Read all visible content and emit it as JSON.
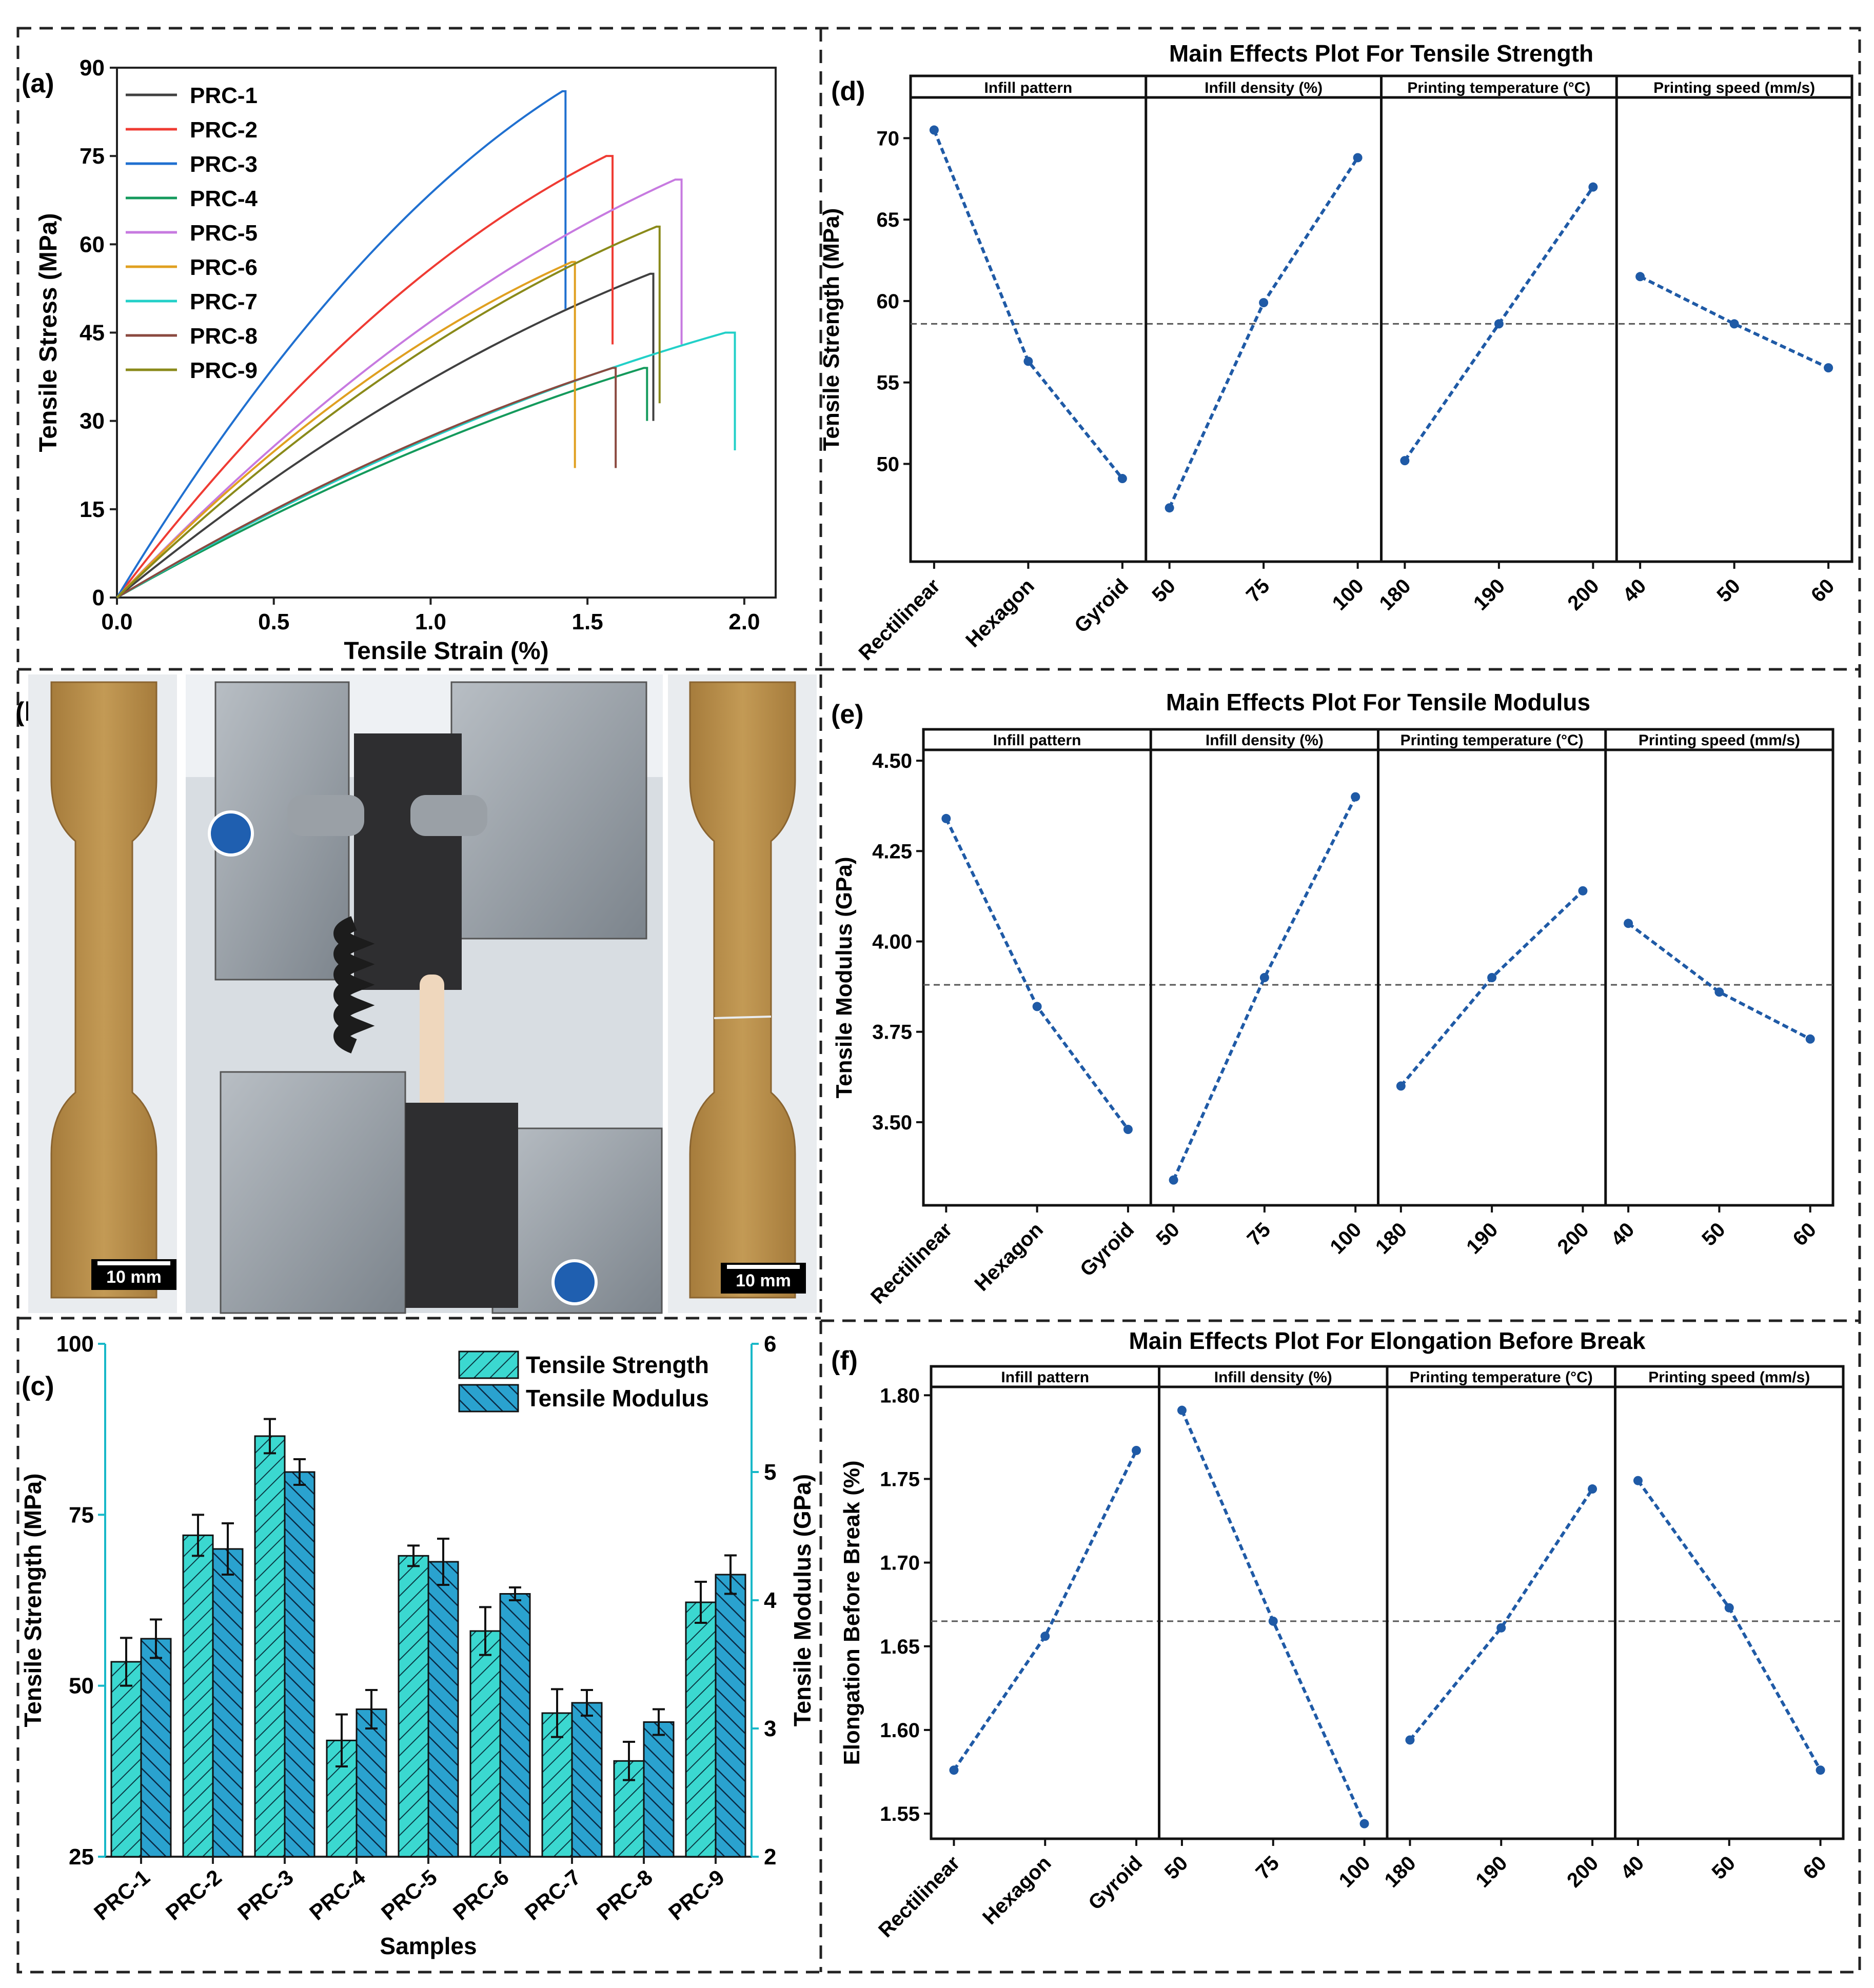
{
  "panel_labels": {
    "a": "(a)",
    "b": "(b)",
    "c": "(c)",
    "d": "(d)",
    "e": "(e)",
    "f": "(f)"
  },
  "photos": {
    "scale_label_left": "10 mm",
    "scale_label_right": "10 mm"
  },
  "colors": {
    "main_effect_line": "#1f5aa6",
    "bar_strength": "#3bd8d0",
    "bar_modulus": "#2aa2cf",
    "axis_cyan": "#19b8c8"
  },
  "chart_data": [
    {
      "id": "a",
      "type": "line",
      "title": "",
      "xlabel": "Tensile Strain (%)",
      "ylabel": "Tensile Stress (MPa)",
      "xlim": [
        0,
        2.1
      ],
      "ylim": [
        0,
        90
      ],
      "xticks": [
        "0.0",
        "0.5",
        "1.0",
        "1.5",
        "2.0"
      ],
      "yticks": [
        "0",
        "15",
        "30",
        "45",
        "60",
        "75",
        "90"
      ],
      "legend_position": "top-left",
      "series": [
        {
          "name": "PRC-1",
          "color": "#404040",
          "peak_strain": 1.7,
          "peak_stress": 55,
          "break_strain": 1.71,
          "end_stress": 30,
          "curvature": 0.35
        },
        {
          "name": "PRC-2",
          "color": "#ef3b33",
          "peak_strain": 1.56,
          "peak_stress": 75,
          "break_strain": 1.58,
          "end_stress": 43,
          "curvature": 0.45
        },
        {
          "name": "PRC-3",
          "color": "#2070d0",
          "peak_strain": 1.42,
          "peak_stress": 86,
          "break_strain": 1.43,
          "end_stress": 49,
          "curvature": 0.45
        },
        {
          "name": "PRC-4",
          "color": "#149a5c",
          "peak_strain": 1.68,
          "peak_stress": 39,
          "break_strain": 1.69,
          "end_stress": 30,
          "curvature": 0.3
        },
        {
          "name": "PRC-5",
          "color": "#c77ae0",
          "peak_strain": 1.78,
          "peak_stress": 71,
          "break_strain": 1.8,
          "end_stress": 43,
          "curvature": 0.4
        },
        {
          "name": "PRC-6",
          "color": "#e0a020",
          "peak_strain": 1.45,
          "peak_stress": 57,
          "break_strain": 1.46,
          "end_stress": 22,
          "curvature": 0.4
        },
        {
          "name": "PRC-7",
          "color": "#22d0c8",
          "peak_strain": 1.94,
          "peak_stress": 45,
          "break_strain": 1.97,
          "end_stress": 25,
          "curvature": 0.35
        },
        {
          "name": "PRC-8",
          "color": "#8b4a40",
          "peak_strain": 1.58,
          "peak_stress": 39,
          "break_strain": 1.59,
          "end_stress": 22,
          "curvature": 0.3
        },
        {
          "name": "PRC-9",
          "color": "#8a8a1a",
          "peak_strain": 1.72,
          "peak_stress": 63,
          "break_strain": 1.73,
          "end_stress": 33,
          "curvature": 0.4
        }
      ]
    },
    {
      "id": "c",
      "type": "bar",
      "title": "",
      "xlabel": "Samples",
      "ylabel": "Tensile Strength (MPa)",
      "ylabel_right": "Tensile Modulus (GPa)",
      "ylim": [
        25,
        100
      ],
      "ylim_right": [
        2,
        6
      ],
      "yticks": [
        "25",
        "50",
        "75",
        "100"
      ],
      "yticks_right": [
        "2",
        "3",
        "4",
        "5",
        "6"
      ],
      "legend_position": "top-right",
      "categories": [
        "PRC-1",
        "PRC-2",
        "PRC-3",
        "PRC-4",
        "PRC-5",
        "PRC-6",
        "PRC-7",
        "PRC-8",
        "PRC-9"
      ],
      "series": [
        {
          "name": "Tensile Strength",
          "axis": "left",
          "values": [
            53.5,
            72,
            86.5,
            42,
            69,
            58,
            46,
            39,
            62.2
          ],
          "errors": [
            3.5,
            3,
            2.5,
            3.8,
            1.5,
            3.5,
            3.5,
            2.8,
            3
          ]
        },
        {
          "name": "Tensile Modulus",
          "axis": "right",
          "values": [
            3.7,
            4.4,
            5.0,
            3.15,
            4.3,
            4.05,
            3.2,
            3.05,
            4.2
          ],
          "errors": [
            0.15,
            0.2,
            0.1,
            0.15,
            0.18,
            0.05,
            0.1,
            0.1,
            0.15
          ]
        }
      ]
    },
    {
      "id": "d",
      "type": "line",
      "title": "Main Effects Plot For Tensile Strength",
      "ylabel": "Tensile Strength (MPa)",
      "ylim": [
        44,
        72.5
      ],
      "yticks": [
        "50",
        "55",
        "60",
        "65",
        "70"
      ],
      "tick_values": [
        50,
        55,
        60,
        65,
        70
      ],
      "mean_line": 58.6,
      "facets": [
        {
          "label": "Infill pattern",
          "levels": [
            "Rectilinear",
            "Hexagon",
            "Gyroid"
          ],
          "values": [
            70.5,
            56.3,
            49.1
          ]
        },
        {
          "label": "Infill density (%)",
          "levels": [
            "50",
            "75",
            "100"
          ],
          "values": [
            47.3,
            59.9,
            68.8
          ]
        },
        {
          "label": "Printing temperature (°C)",
          "levels": [
            "180",
            "190",
            "200"
          ],
          "values": [
            50.2,
            58.6,
            67.0
          ]
        },
        {
          "label": "Printing speed (mm/s)",
          "levels": [
            "40",
            "50",
            "60"
          ],
          "values": [
            61.5,
            58.6,
            55.9
          ]
        }
      ]
    },
    {
      "id": "e",
      "type": "line",
      "title": "Main Effects Plot For Tensile Modulus",
      "ylabel": "Tensile Modulus (GPa)",
      "ylim": [
        3.27,
        4.53
      ],
      "yticks": [
        "3.50",
        "3.75",
        "4.00",
        "4.25",
        "4.50"
      ],
      "tick_values": [
        3.5,
        3.75,
        4.0,
        4.25,
        4.5
      ],
      "mean_line": 3.88,
      "facets": [
        {
          "label": "Infill pattern",
          "levels": [
            "Rectilinear",
            "Hexagon",
            "Gyroid"
          ],
          "values": [
            4.34,
            3.82,
            3.48
          ]
        },
        {
          "label": "Infill density (%)",
          "levels": [
            "50",
            "75",
            "100"
          ],
          "values": [
            3.34,
            3.9,
            4.4
          ]
        },
        {
          "label": "Printing temperature (°C)",
          "levels": [
            "180",
            "190",
            "200"
          ],
          "values": [
            3.6,
            3.9,
            4.14
          ]
        },
        {
          "label": "Printing speed (mm/s)",
          "levels": [
            "40",
            "50",
            "60"
          ],
          "values": [
            4.05,
            3.86,
            3.73
          ]
        }
      ]
    },
    {
      "id": "f",
      "type": "line",
      "title": "Main Effects Plot For Elongation Before Break",
      "ylabel": "Elongation Before Break (%)",
      "ylim": [
        1.535,
        1.805
      ],
      "yticks": [
        "1.55",
        "1.60",
        "1.65",
        "1.70",
        "1.75",
        "1.80"
      ],
      "tick_values": [
        1.55,
        1.6,
        1.65,
        1.7,
        1.75,
        1.8
      ],
      "mean_line": 1.665,
      "facets": [
        {
          "label": "Infill pattern",
          "levels": [
            "Rectilinear",
            "Hexagon",
            "Gyroid"
          ],
          "values": [
            1.576,
            1.656,
            1.767
          ]
        },
        {
          "label": "Infill density (%)",
          "levels": [
            "50",
            "75",
            "100"
          ],
          "values": [
            1.791,
            1.665,
            1.544
          ]
        },
        {
          "label": "Printing temperature (°C)",
          "levels": [
            "180",
            "190",
            "200"
          ],
          "values": [
            1.594,
            1.661,
            1.744
          ]
        },
        {
          "label": "Printing speed (mm/s)",
          "levels": [
            "40",
            "50",
            "60"
          ],
          "values": [
            1.749,
            1.673,
            1.576
          ]
        }
      ]
    }
  ]
}
